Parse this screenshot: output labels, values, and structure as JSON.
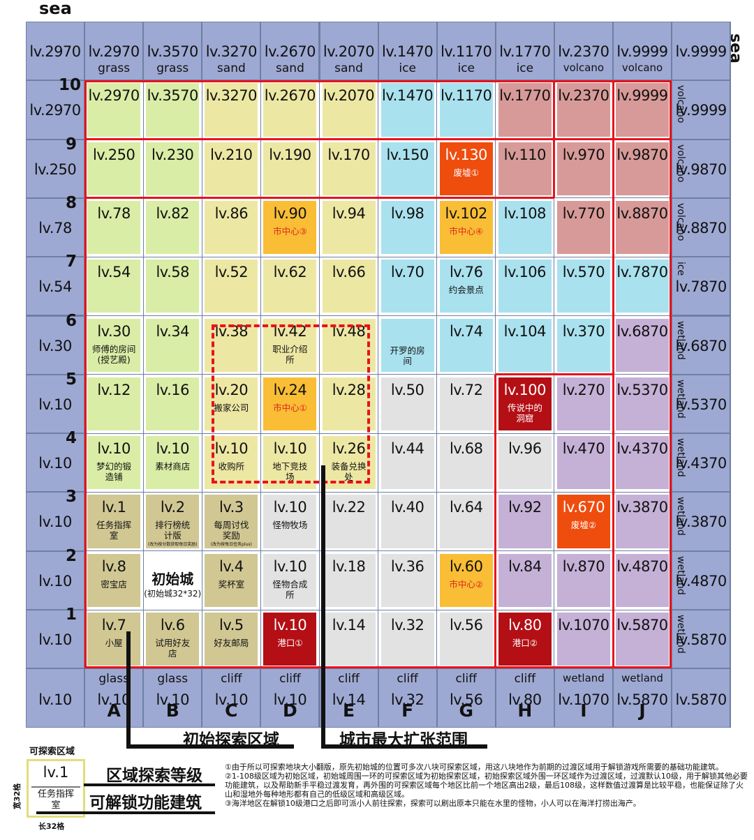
{
  "top_left_label": "sea",
  "right_label": "sea",
  "columns": [
    "A",
    "B",
    "C",
    "D",
    "E",
    "F",
    "G",
    "H",
    "I",
    "J"
  ],
  "rows": [
    "10",
    "9",
    "8",
    "7",
    "6",
    "5",
    "4",
    "3",
    "2",
    "1"
  ],
  "colors": {
    "border_sea": "#9ea9d3",
    "grass": "#d9eda6",
    "sand": "#ede7a4",
    "ice": "#a9e1ee",
    "volcano": "#d79a98",
    "wetland": "#c5b0d6",
    "gray": "#e2e2e2",
    "olive": "#d0c793",
    "city_center": "#f9be35",
    "ruin": "#ee4d0e",
    "port": "#b30f15",
    "white": "#ffffff",
    "red_line": "#e8121b"
  },
  "top_border": [
    {
      "lv": "lv.2970",
      "type": ""
    },
    {
      "lv": "lv.2970",
      "type": "grass"
    },
    {
      "lv": "lv.3570",
      "type": "grass"
    },
    {
      "lv": "lv.3270",
      "type": "sand"
    },
    {
      "lv": "lv.2670",
      "type": "sand"
    },
    {
      "lv": "lv.2070",
      "type": "sand"
    },
    {
      "lv": "lv.1470",
      "type": "ice"
    },
    {
      "lv": "lv.1170",
      "type": "ice"
    },
    {
      "lv": "lv.1770",
      "type": "ice"
    },
    {
      "lv": "lv.2370",
      "type": "volcano"
    },
    {
      "lv": "lv.9999",
      "type": "volcano"
    },
    {
      "lv": "lv.9999",
      "type": ""
    }
  ],
  "bottom_border": [
    {
      "lv": "lv.10",
      "type": ""
    },
    {
      "lv": "lv.10",
      "type": "glass"
    },
    {
      "lv": "lv.10",
      "type": "glass"
    },
    {
      "lv": "lv.10",
      "type": "cliff"
    },
    {
      "lv": "lv.10",
      "type": "cliff"
    },
    {
      "lv": "lv.14",
      "type": "cliff"
    },
    {
      "lv": "lv.32",
      "type": "cliff"
    },
    {
      "lv": "lv.56",
      "type": "cliff"
    },
    {
      "lv": "lv.80",
      "type": "cliff"
    },
    {
      "lv": "lv.1070",
      "type": "wetland"
    },
    {
      "lv": "lv.5870",
      "type": "wetland"
    },
    {
      "lv": "lv.5870",
      "type": ""
    }
  ],
  "left_border": [
    "lv.2970",
    "lv.250",
    "lv.78",
    "lv.54",
    "lv.30",
    "lv.10",
    "lv.10",
    "lv.10",
    "lv.10",
    "lv.10"
  ],
  "right_border": [
    {
      "lv": "lv.9999",
      "type": "volcano"
    },
    {
      "lv": "lv.9870",
      "type": "volcano"
    },
    {
      "lv": "lv.8870",
      "type": "volcano"
    },
    {
      "lv": "lv.7870",
      "type": "ice"
    },
    {
      "lv": "lv.6870",
      "type": "wetland"
    },
    {
      "lv": "lv.5370",
      "type": "wetland"
    },
    {
      "lv": "lv.4370",
      "type": "wetland"
    },
    {
      "lv": "lv.3870",
      "type": "wetland"
    },
    {
      "lv": "lv.4870",
      "type": "wetland"
    },
    {
      "lv": "lv.5870",
      "type": "wetland"
    }
  ],
  "grid": [
    [
      {
        "lv": "lv.2970"
      },
      {
        "lv": "lv.3570"
      },
      {
        "lv": "lv.3270"
      },
      {
        "lv": "lv.2670"
      },
      {
        "lv": "lv.2070"
      },
      {
        "lv": "lv.1470"
      },
      {
        "lv": "lv.1170"
      },
      {
        "lv": "lv.1770"
      },
      {
        "lv": "lv.2370"
      },
      {
        "lv": "lv.9999"
      }
    ],
    [
      {
        "lv": "lv.250"
      },
      {
        "lv": "lv.230"
      },
      {
        "lv": "lv.210"
      },
      {
        "lv": "lv.190"
      },
      {
        "lv": "lv.170"
      },
      {
        "lv": "lv.150"
      },
      {
        "lv": "lv.130",
        "sub": "废墟①",
        "style": "ruin"
      },
      {
        "lv": "lv.110"
      },
      {
        "lv": "lv.970"
      },
      {
        "lv": "lv.9870"
      }
    ],
    [
      {
        "lv": "lv.78"
      },
      {
        "lv": "lv.82"
      },
      {
        "lv": "lv.86"
      },
      {
        "lv": "lv.90",
        "sub": "市中心③",
        "style": "center"
      },
      {
        "lv": "lv.94"
      },
      {
        "lv": "lv.98"
      },
      {
        "lv": "lv.102",
        "sub": "市中心④",
        "style": "center"
      },
      {
        "lv": "lv.108"
      },
      {
        "lv": "lv.770"
      },
      {
        "lv": "lv.8870"
      }
    ],
    [
      {
        "lv": "lv.54"
      },
      {
        "lv": "lv.58"
      },
      {
        "lv": "lv.52"
      },
      {
        "lv": "lv.62"
      },
      {
        "lv": "lv.66"
      },
      {
        "lv": "lv.70"
      },
      {
        "lv": "lv.76",
        "sub": "约会景点"
      },
      {
        "lv": "lv.106"
      },
      {
        "lv": "lv.570"
      },
      {
        "lv": "lv.7870"
      }
    ],
    [
      {
        "lv": "lv.30",
        "sub": "师傅的房间\n(授艺殿)"
      },
      {
        "lv": "lv.34"
      },
      {
        "lv": "lv.38"
      },
      {
        "lv": "lv.42",
        "sub": "职业介绍\n所"
      },
      {
        "lv": "lv.48"
      },
      {
        "lv": "",
        "sub": "开罗的房\n间",
        "sub_low": true
      },
      {
        "lv": "lv.74"
      },
      {
        "lv": "lv.104"
      },
      {
        "lv": "lv.370"
      },
      {
        "lv": "lv.6870"
      }
    ],
    [
      {
        "lv": "lv.12"
      },
      {
        "lv": "lv.16"
      },
      {
        "lv": "lv.20",
        "sub": "搬家公司"
      },
      {
        "lv": "lv.24",
        "sub": "市中心①",
        "style": "center"
      },
      {
        "lv": "lv.28"
      },
      {
        "lv": "lv.50"
      },
      {
        "lv": "lv.72"
      },
      {
        "lv": "lv.100",
        "sub": "传说中的\n洞窟",
        "style": "port"
      },
      {
        "lv": "lv.270"
      },
      {
        "lv": "lv.5370"
      }
    ],
    [
      {
        "lv": "lv.10",
        "sub": "梦幻的锻\n造铺"
      },
      {
        "lv": "lv.10",
        "sub": "素材商店"
      },
      {
        "lv": "lv.10",
        "sub": "收购所"
      },
      {
        "lv": "lv.10",
        "sub": "地下竞技\n场"
      },
      {
        "lv": "lv.26",
        "sub": "装备兑换\n处"
      },
      {
        "lv": "lv.44"
      },
      {
        "lv": "lv.68"
      },
      {
        "lv": "lv.96"
      },
      {
        "lv": "lv.470"
      },
      {
        "lv": "lv.4370"
      }
    ],
    [
      {
        "lv": "lv.1",
        "sub": "任务指挥\n室"
      },
      {
        "lv": "lv.2",
        "sub": "排行榜统\n计版",
        "small": "(改为按分数获取每日奖励)"
      },
      {
        "lv": "lv.3",
        "sub": "每周讨伐\n奖励",
        "small": "(改为按每日任务plus)"
      },
      {
        "lv": "lv.10",
        "sub": "怪物牧场"
      },
      {
        "lv": "lv.22"
      },
      {
        "lv": "lv.40"
      },
      {
        "lv": "lv.64"
      },
      {
        "lv": "lv.92"
      },
      {
        "lv": "lv.670",
        "sub": "废墟②",
        "style": "ruin"
      },
      {
        "lv": "lv.3870"
      }
    ],
    [
      {
        "lv": "lv.8",
        "sub": "密宝店"
      },
      {
        "lv": "",
        "mid": "初始城",
        "mid2": "(初始城32*32)"
      },
      {
        "lv": "lv.4",
        "sub": "奖杯室"
      },
      {
        "lv": "lv.10",
        "sub": "怪物合成\n所"
      },
      {
        "lv": "lv.18"
      },
      {
        "lv": "lv.36"
      },
      {
        "lv": "lv.60",
        "sub": "市中心②",
        "style": "center"
      },
      {
        "lv": "lv.84"
      },
      {
        "lv": "lv.870"
      },
      {
        "lv": "lv.4870"
      }
    ],
    [
      {
        "lv": "lv.7",
        "sub": "小屋"
      },
      {
        "lv": "lv.6",
        "sub": "试用好友\n店"
      },
      {
        "lv": "lv.5",
        "sub": "好友邮局"
      },
      {
        "lv": "lv.10",
        "sub": "港口①",
        "style": "port"
      },
      {
        "lv": "lv.14"
      },
      {
        "lv": "lv.32"
      },
      {
        "lv": "lv.56"
      },
      {
        "lv": "lv.80",
        "sub": "港口②",
        "style": "port"
      },
      {
        "lv": "lv.1070"
      },
      {
        "lv": "lv.5870"
      }
    ]
  ],
  "annotations": {
    "initial_area": "初始探索区域",
    "max_city": "城市最大扩张范围"
  },
  "legend": {
    "title": "可探索区域",
    "lv": "lv.1",
    "building": "任务指挥\n室",
    "width": "宽32格",
    "length": "长32格",
    "level_label": "区域探索等级",
    "building_label": "可解锁功能建筑"
  },
  "notes": [
    "①由于所以可探索地块大小翻版，原先初始城的位置可多次八块可探索区域，用这八块地作为前期的过渡区域用于解锁游戏所需要的基础功能建筑。",
    "②1-108级区域为初始区域，初始城周围一环的可探索区域为初始探索区域，初始探索区域外围一环区域作为过渡区域，过渡默认10级，用于解锁其他必要功能建筑，以及帮助新手平稳过渡发育，再外围的可探索区域每个地区比前一个地区高出2级，最后108级，这样数值过渡算是比较平稳，也能保证除了火山和湿地外每种地形都有自己的低级区域和高级区域。",
    "③海洋地区在解锁10级港口之后即可派小人前往探索，探索可以刷出原本只能在水里的怪物，小人可以在海洋打捞出海产。"
  ]
}
